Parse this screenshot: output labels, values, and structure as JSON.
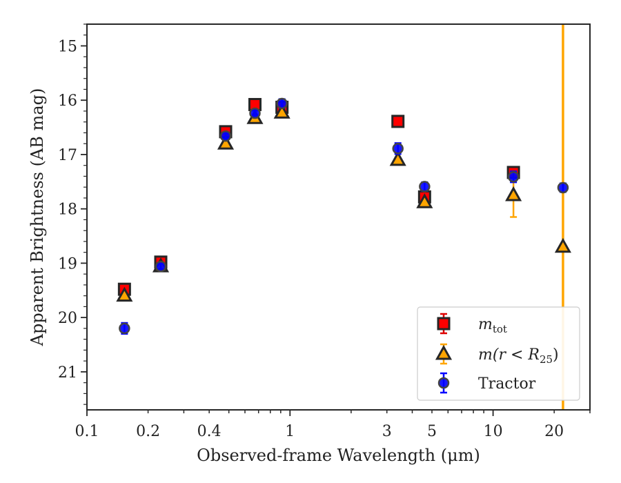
{
  "chart_data": {
    "type": "scatter",
    "xlabel": "Observed-frame Wavelength (μm)",
    "ylabel": "Apparent Brightness (AB mag)",
    "xscale": "log",
    "xlim": [
      0.1,
      30
    ],
    "ylim": [
      21.7,
      14.6
    ],
    "y_inverted": true,
    "x_tick_labels": [
      {
        "value": 0.1,
        "label": "0.1"
      },
      {
        "value": 0.2,
        "label": "0.2"
      },
      {
        "value": 0.4,
        "label": "0.4"
      },
      {
        "value": 1,
        "label": "1"
      },
      {
        "value": 3,
        "label": "3"
      },
      {
        "value": 5,
        "label": "5"
      },
      {
        "value": 10,
        "label": "10"
      },
      {
        "value": 20,
        "label": "20"
      }
    ],
    "y_ticks": [
      15,
      16,
      17,
      18,
      19,
      20,
      21
    ],
    "grid": false,
    "legend_position": "bottom-right",
    "vertical_line": {
      "x": 22.1,
      "color": "#FFA500"
    },
    "series": [
      {
        "name": "m_tot",
        "legend": {
          "main": "m",
          "sub": "tot"
        },
        "marker": "square",
        "color": "#FF0000",
        "ecolor": "#DD0000",
        "points": [
          {
            "x": 0.153,
            "y": 19.48,
            "err": 0.03
          },
          {
            "x": 0.231,
            "y": 18.98,
            "err": 0.03
          },
          {
            "x": 0.482,
            "y": 16.58,
            "err": 0.03
          },
          {
            "x": 0.672,
            "y": 16.08,
            "err": 0.03
          },
          {
            "x": 0.913,
            "y": 16.13,
            "err": 0.03
          },
          {
            "x": 3.4,
            "y": 16.39,
            "err": 0.03
          },
          {
            "x": 4.6,
            "y": 17.78,
            "err": 0.03
          },
          {
            "x": 12.6,
            "y": 17.33,
            "err": 0.03
          }
        ]
      },
      {
        "name": "m(r < R25)",
        "legend": {
          "main": "m(r < R",
          "sub": "25",
          "tail": ")"
        },
        "marker": "triangle",
        "color": "#FFA500",
        "ecolor": "#FFA500",
        "points": [
          {
            "x": 0.153,
            "y": 19.6,
            "err": 0.03
          },
          {
            "x": 0.231,
            "y": 19.06,
            "err": 0.03
          },
          {
            "x": 0.482,
            "y": 16.8,
            "err": 0.03
          },
          {
            "x": 0.672,
            "y": 16.33,
            "err": 0.03
          },
          {
            "x": 0.913,
            "y": 16.23,
            "err": 0.03
          },
          {
            "x": 3.4,
            "y": 17.1,
            "err": 0.03
          },
          {
            "x": 4.6,
            "y": 17.88,
            "err": 0.03
          },
          {
            "x": 12.6,
            "y": 17.75,
            "err": 0.4
          },
          {
            "x": 22.1,
            "y": 18.7,
            "err": 0
          }
        ]
      },
      {
        "name": "Tractor",
        "legend": {
          "main": "Tractor"
        },
        "marker": "circle",
        "color": "#0000FF",
        "ecolor": "#0000FF",
        "points": [
          {
            "x": 0.153,
            "y": 20.2,
            "err": 0.1
          },
          {
            "x": 0.231,
            "y": 19.06,
            "err": 0.05
          },
          {
            "x": 0.482,
            "y": 16.66,
            "err": 0.05
          },
          {
            "x": 0.672,
            "y": 16.24,
            "err": 0.05
          },
          {
            "x": 0.913,
            "y": 16.06,
            "err": 0.08
          },
          {
            "x": 3.4,
            "y": 16.89,
            "err": 0.1
          },
          {
            "x": 4.6,
            "y": 17.59,
            "err": 0.08
          },
          {
            "x": 12.6,
            "y": 17.41,
            "err": 0.1
          },
          {
            "x": 22.1,
            "y": 17.61,
            "err": 0.08
          }
        ]
      }
    ]
  }
}
